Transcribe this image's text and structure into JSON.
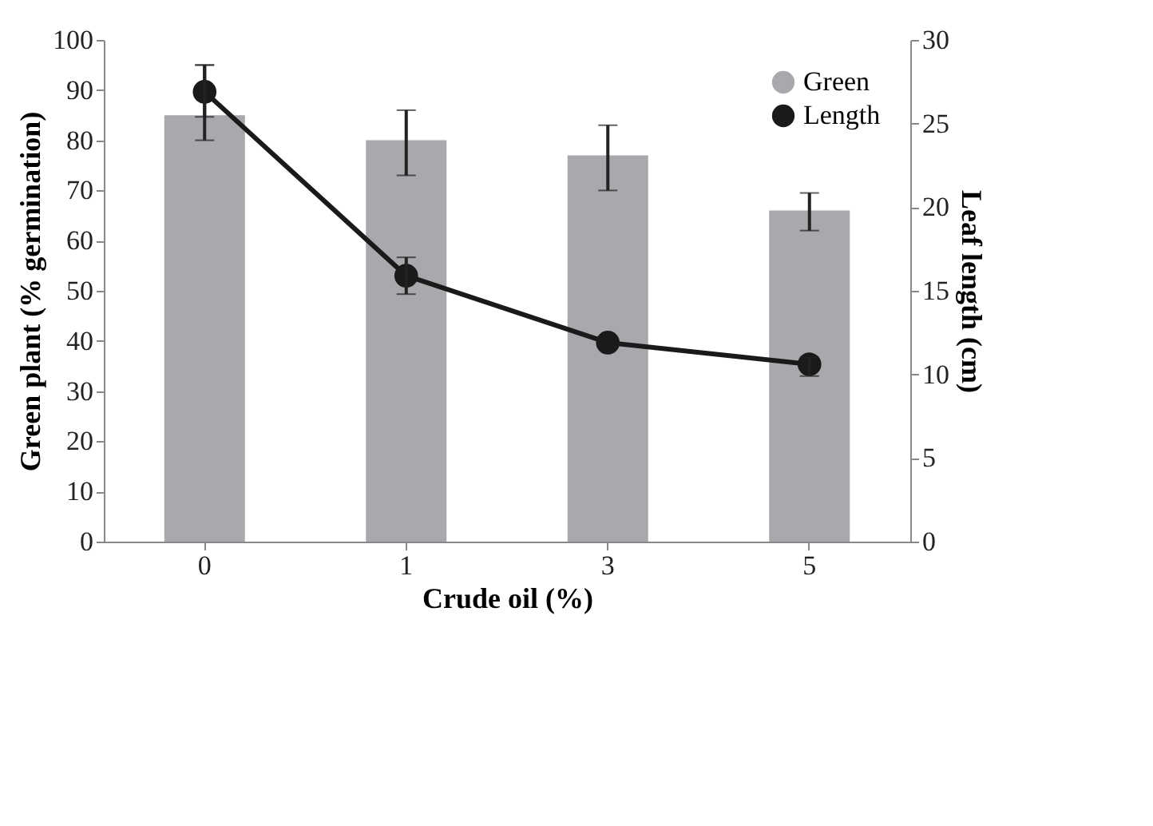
{
  "chart_data": {
    "type": "bar",
    "categories": [
      "0",
      "1",
      "3",
      "5"
    ],
    "xlabel": "Crude oil (%)",
    "ylabel": "Green plant (% germination)",
    "y2label": "Leaf length (cm)",
    "series": [
      {
        "name": "Green",
        "color": "#a7a9ac",
        "values": [
          85,
          80,
          77,
          66
        ],
        "errors": [
          [
            80,
            95
          ],
          [
            73,
            86
          ],
          [
            70,
            83
          ],
          [
            62,
            69.5
          ]
        ]
      },
      {
        "name": "Length",
        "type": "line",
        "axis": "y2",
        "color": "#1a1a1a",
        "values": [
          26.9,
          15.9,
          11.9,
          10.6
        ],
        "errors": [
          [
            25.4,
            28.5
          ],
          [
            14.8,
            17
          ],
          null,
          [
            9.9,
            11
          ]
        ]
      }
    ],
    "ylim": [
      0,
      100
    ],
    "yticks": [
      0,
      10,
      20,
      30,
      40,
      50,
      60,
      70,
      80,
      90,
      100
    ],
    "y2lim": [
      0,
      30
    ],
    "y2ticks": [
      0,
      5,
      10,
      15,
      20,
      25,
      30
    ],
    "legend": "top right",
    "marker": "circle",
    "grid": false
  }
}
